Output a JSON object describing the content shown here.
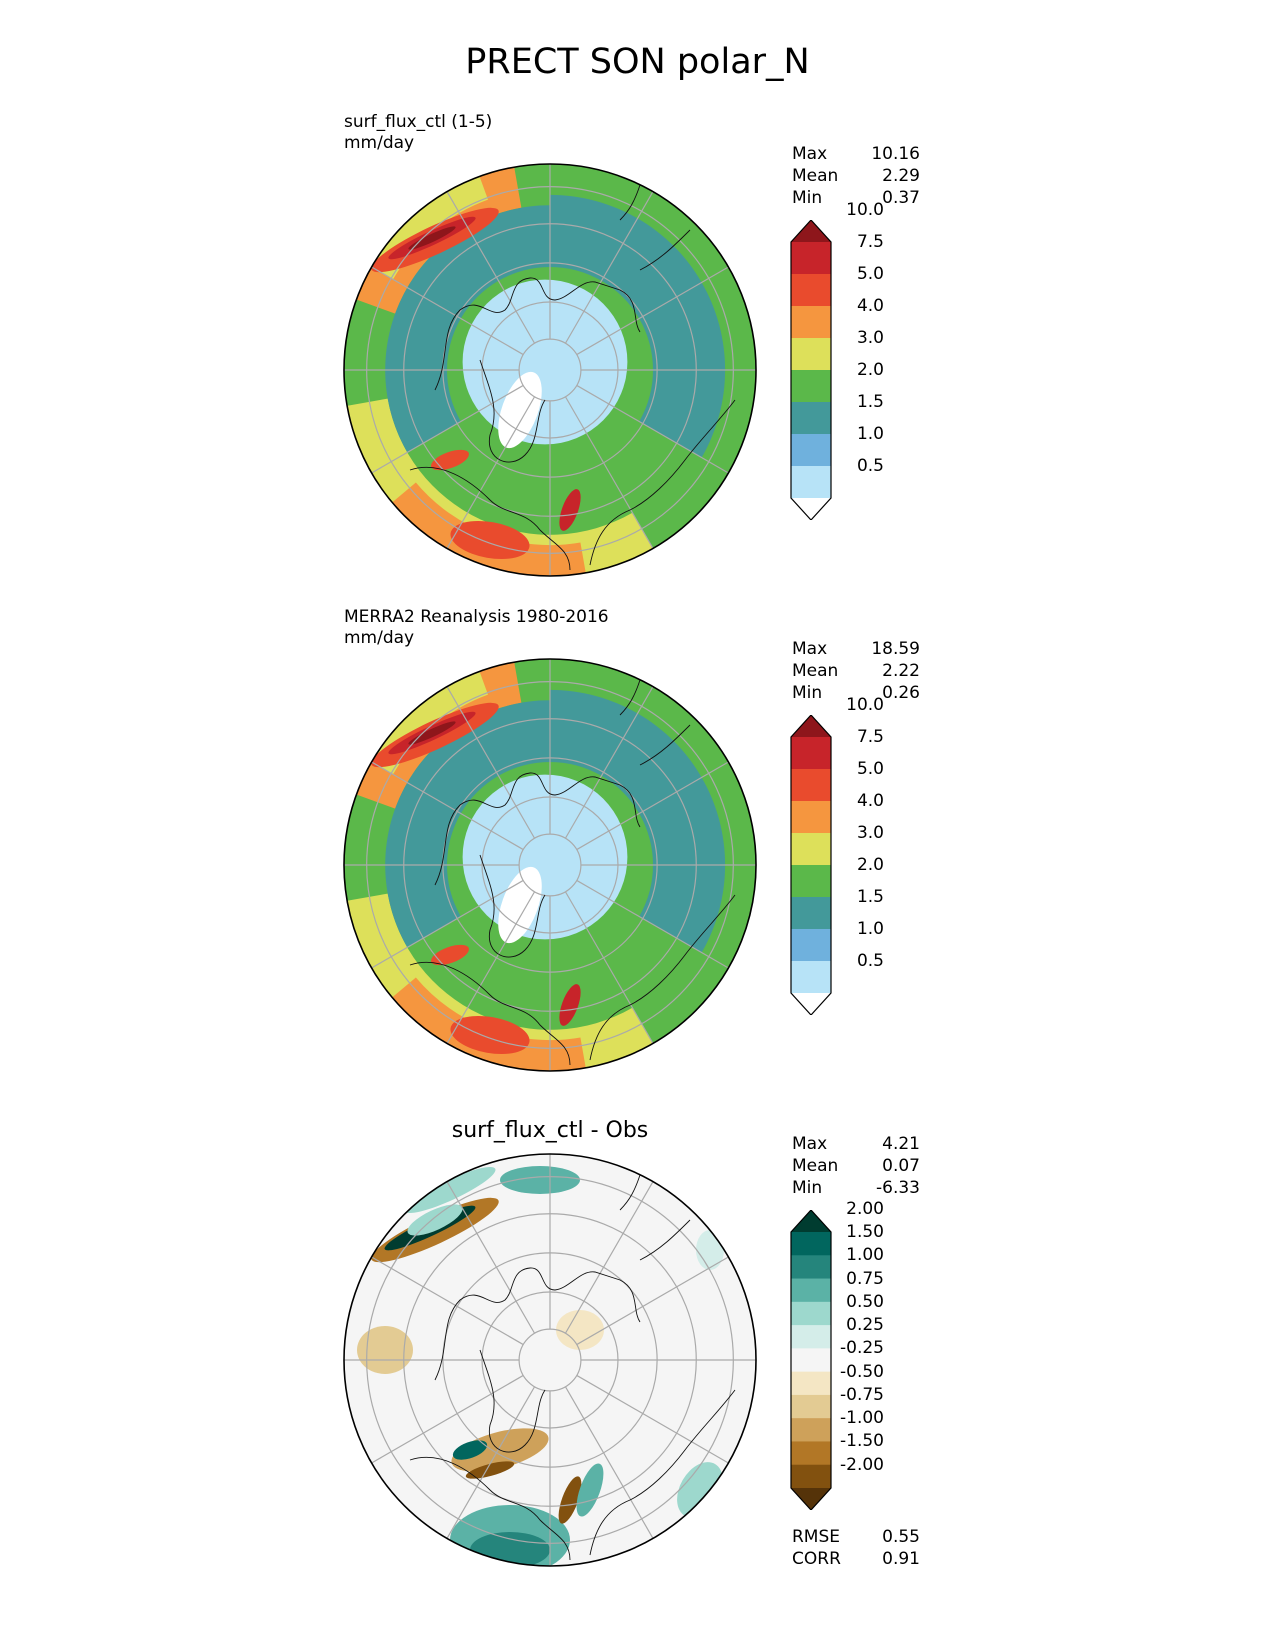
{
  "title": "PRECT SON polar_N",
  "panels": [
    {
      "id": "test",
      "name_line": "surf_flux_ctl (1-5)",
      "units_line": "mm/day",
      "stats": [
        {
          "label": "Max",
          "value": "10.16"
        },
        {
          "label": "Mean",
          "value": "2.29"
        },
        {
          "label": "Min",
          "value": "0.37"
        }
      ],
      "colorbar": {
        "colors": [
          "#ffffff",
          "#b7e3f7",
          "#6fb1dd",
          "#43999a",
          "#5bb84a",
          "#dde05a",
          "#f5963f",
          "#e94b2d",
          "#c7242a",
          "#8e161b"
        ],
        "tick_labels": [
          "0.5",
          "1.0",
          "1.5",
          "2.0",
          "3.0",
          "4.0",
          "5.0",
          "7.5",
          "10.0"
        ]
      }
    },
    {
      "id": "ref",
      "name_line": "MERRA2 Reanalysis 1980-2016",
      "units_line": "mm/day",
      "stats": [
        {
          "label": "Max",
          "value": "18.59"
        },
        {
          "label": "Mean",
          "value": "2.22"
        },
        {
          "label": "Min",
          "value": "0.26"
        }
      ],
      "colorbar": {
        "colors": [
          "#ffffff",
          "#b7e3f7",
          "#6fb1dd",
          "#43999a",
          "#5bb84a",
          "#dde05a",
          "#f5963f",
          "#e94b2d",
          "#c7242a",
          "#8e161b"
        ],
        "tick_labels": [
          "0.5",
          "1.0",
          "1.5",
          "2.0",
          "3.0",
          "4.0",
          "5.0",
          "7.5",
          "10.0"
        ]
      }
    },
    {
      "id": "diff",
      "center_title": "surf_flux_ctl - Obs",
      "stats": [
        {
          "label": "Max",
          "value": "4.21"
        },
        {
          "label": "Mean",
          "value": "0.07"
        },
        {
          "label": "Min",
          "value": "-6.33"
        }
      ],
      "extra_stats": [
        {
          "label": "RMSE",
          "value": "0.55"
        },
        {
          "label": "CORR",
          "value": "0.91"
        }
      ],
      "colorbar": {
        "colors": [
          "#553309",
          "#82510f",
          "#b27726",
          "#cea15a",
          "#e3cb93",
          "#f4e6c4",
          "#f5f5f5",
          "#d4ede9",
          "#9dd8cd",
          "#5bb2a6",
          "#25857c",
          "#01665e",
          "#003c30"
        ],
        "tick_labels": [
          "-2.00",
          "-1.50",
          "-1.00",
          "-0.75",
          "-0.50",
          "-0.25",
          "0.25",
          "0.50",
          "0.75",
          "1.00",
          "1.50",
          "2.00"
        ]
      }
    }
  ]
}
